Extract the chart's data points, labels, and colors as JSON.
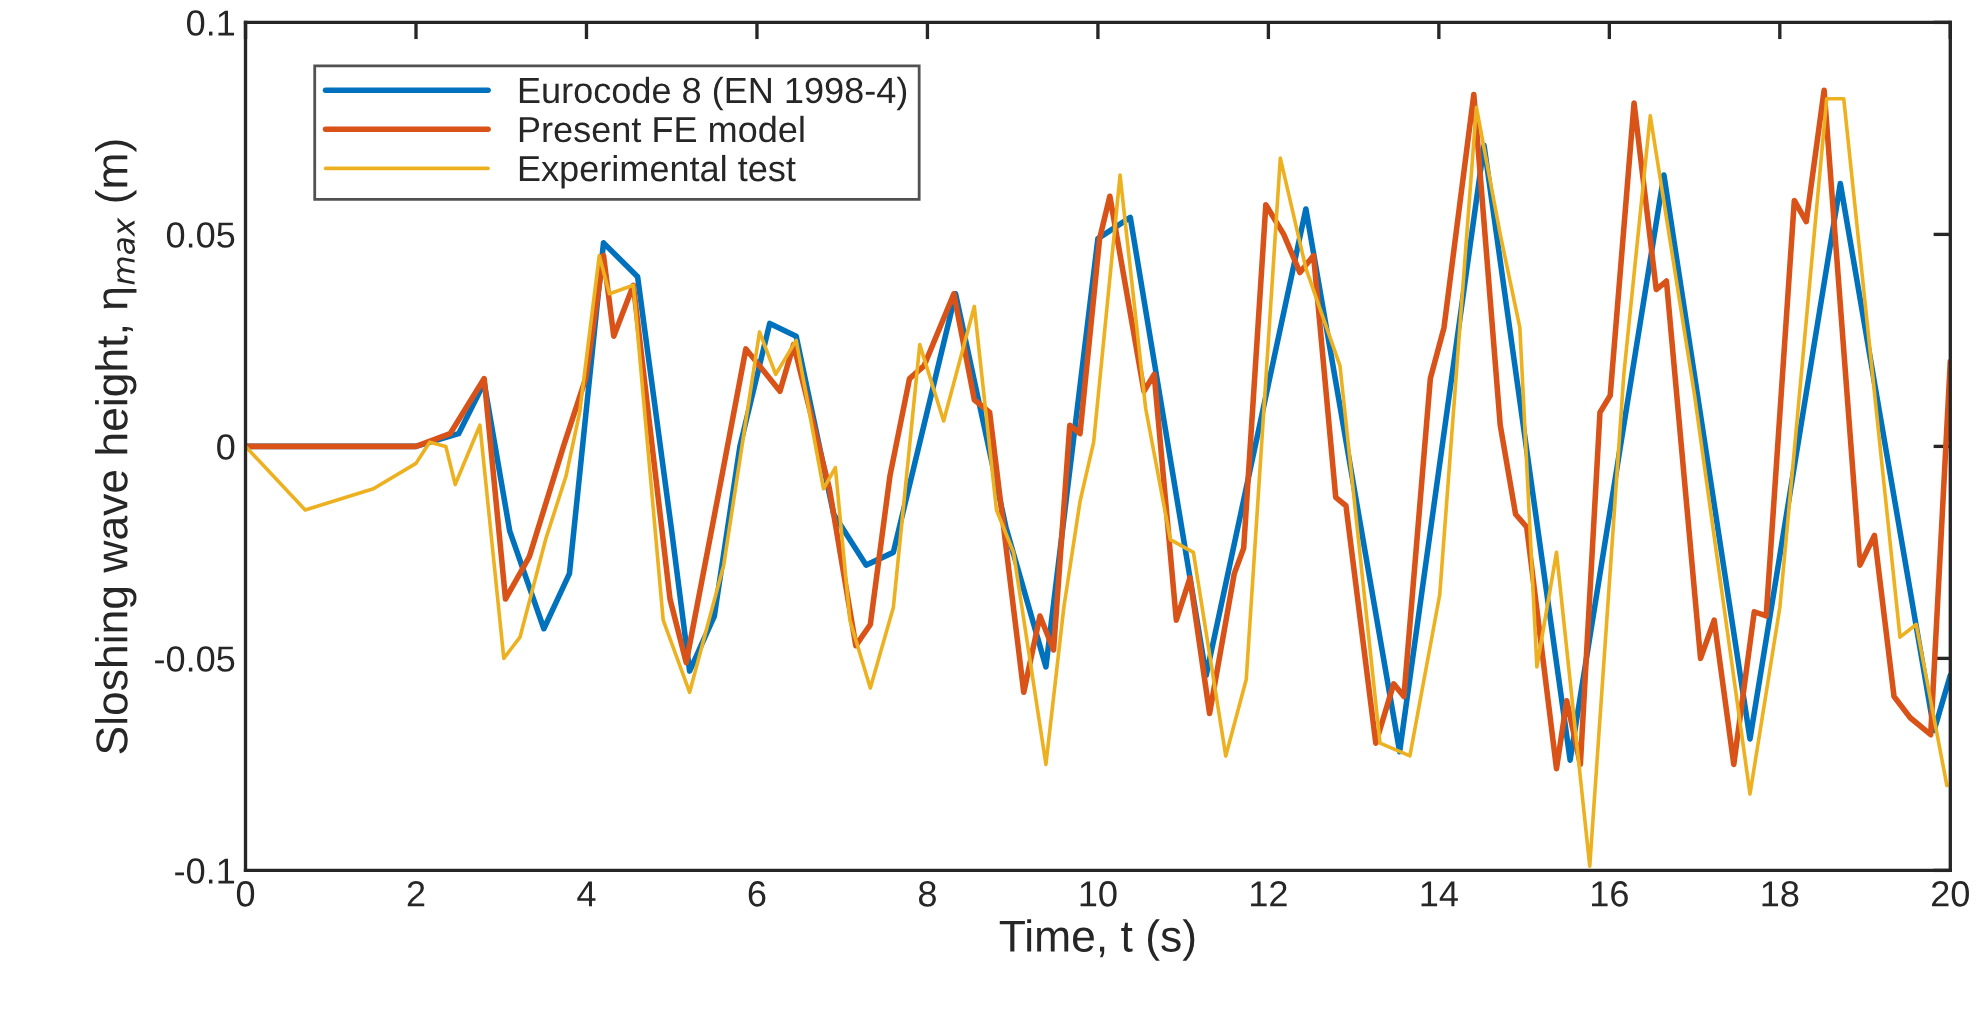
{
  "chart_data": {
    "type": "line",
    "xlabel": "Time, t (s)",
    "ylabel": "Sloshing wave height, η$_{max}$ (m)",
    "xlim": [
      0,
      20
    ],
    "xticks": [
      0,
      2,
      4,
      6,
      8,
      10,
      12,
      14,
      16,
      18,
      20
    ],
    "ylim": [
      -0.1,
      0.1
    ],
    "yticks": [
      {
        "value": -0.1,
        "label": "-0.1"
      },
      {
        "value": -0.05,
        "label": "-0.05"
      },
      0,
      0.05,
      0.1
    ],
    "grid": false,
    "legend": "top left",
    "marker": "none",
    "line_style": "solid",
    "series": [
      {
        "name": "Eurocode 8 (EN 1998-4)",
        "color": "#0072bd",
        "x": [
          0,
          2,
          2.5,
          2.8,
          3.1,
          3.5,
          3.8,
          4.2,
          4.6,
          5.0,
          5.21,
          5.5,
          5.8,
          6.15,
          6.46,
          6.9,
          7.28,
          7.6,
          8.33,
          8.92,
          9.39,
          10.0,
          10.38,
          11.27,
          12.44,
          13.54,
          14.53,
          15.54,
          16.64,
          17.65,
          18.71,
          19.81,
          20
        ],
        "values": [
          0,
          0,
          0.003,
          0.015,
          -0.02,
          -0.043,
          -0.03,
          0.048,
          0.04,
          -0.02,
          -0.053,
          -0.04,
          0.0,
          0.029,
          0.026,
          -0.016,
          -0.028,
          -0.025,
          0.036,
          -0.019,
          -0.052,
          0.049,
          0.054,
          -0.054,
          0.056,
          -0.072,
          0.071,
          -0.074,
          0.064,
          -0.069,
          0.062,
          -0.067,
          -0.054
        ]
      },
      {
        "name": "Present FE model",
        "color": "#d95319",
        "x": [
          0,
          2,
          2.4,
          2.8,
          3.05,
          3.33,
          3.73,
          3.99,
          4.2,
          4.32,
          4.55,
          4.98,
          5.17,
          5.56,
          5.87,
          6.27,
          6.43,
          6.85,
          7.16,
          7.33,
          7.56,
          7.79,
          7.96,
          8.31,
          8.55,
          8.73,
          9.13,
          9.32,
          9.48,
          9.67,
          9.79,
          10.02,
          10.14,
          10.54,
          10.66,
          10.92,
          11.08,
          11.31,
          11.6,
          11.71,
          11.97,
          12.18,
          12.37,
          12.53,
          12.79,
          12.91,
          13.26,
          13.47,
          13.59,
          13.9,
          14.06,
          14.41,
          14.72,
          14.9,
          15.03,
          15.38,
          15.5,
          15.66,
          15.89,
          16.01,
          16.29,
          16.55,
          16.67,
          17.07,
          17.23,
          17.46,
          17.7,
          17.84,
          18.17,
          18.31,
          18.52,
          18.94,
          19.11,
          19.34,
          19.53,
          19.77,
          20
        ],
        "values": [
          0,
          0,
          0.003,
          0.016,
          -0.036,
          -0.026,
          0,
          0.016,
          0.045,
          0.026,
          0.038,
          -0.036,
          -0.051,
          -0.01,
          0.023,
          0.013,
          0.024,
          -0.01,
          -0.047,
          -0.042,
          -0.007,
          0.016,
          0.019,
          0.036,
          0.011,
          0.008,
          -0.058,
          -0.04,
          -0.048,
          0.005,
          0.003,
          0.049,
          0.059,
          0.013,
          0.017,
          -0.041,
          -0.031,
          -0.063,
          -0.03,
          -0.024,
          0.057,
          0.05,
          0.041,
          0.045,
          -0.012,
          -0.014,
          -0.07,
          -0.056,
          -0.059,
          0.016,
          0.028,
          0.083,
          0.005,
          -0.016,
          -0.019,
          -0.076,
          -0.06,
          -0.075,
          0.008,
          0.012,
          0.081,
          0.037,
          0.039,
          -0.05,
          -0.041,
          -0.075,
          -0.039,
          -0.04,
          0.058,
          0.053,
          0.084,
          -0.028,
          -0.021,
          -0.059,
          -0.064,
          -0.068,
          0.02
        ]
      },
      {
        "name": "Experimental test",
        "color": "#edb120",
        "x": [
          0,
          0.7,
          1.5,
          2.0,
          2.16,
          2.35,
          2.46,
          2.75,
          3.03,
          3.22,
          3.52,
          3.76,
          3.92,
          4.15,
          4.27,
          4.55,
          4.9,
          5.21,
          5.61,
          6.03,
          6.22,
          6.46,
          6.78,
          6.92,
          7.09,
          7.33,
          7.6,
          7.91,
          8.19,
          8.55,
          8.81,
          9.01,
          9.39,
          9.6,
          9.79,
          9.95,
          10.26,
          10.56,
          10.85,
          11.12,
          11.5,
          11.74,
          12.14,
          12.44,
          12.84,
          13.31,
          13.66,
          14.01,
          14.44,
          14.72,
          14.95,
          15.15,
          15.38,
          15.77,
          16.17,
          16.48,
          17.0,
          17.65,
          18.0,
          18.55,
          18.75,
          19.41,
          19.6,
          19.96
        ],
        "values": [
          0,
          -0.015,
          -0.01,
          -0.004,
          0.001,
          0,
          -0.009,
          0.005,
          -0.05,
          -0.045,
          -0.022,
          -0.007,
          0.008,
          0.045,
          0.036,
          0.038,
          -0.041,
          -0.058,
          -0.028,
          0.027,
          0.017,
          0.025,
          -0.01,
          -0.005,
          -0.041,
          -0.057,
          -0.038,
          0.024,
          0.006,
          0.033,
          -0.015,
          -0.025,
          -0.075,
          -0.038,
          -0.013,
          0.001,
          0.064,
          0.009,
          -0.022,
          -0.025,
          -0.073,
          -0.055,
          0.068,
          0.042,
          0.019,
          -0.07,
          -0.073,
          -0.035,
          0.08,
          0.05,
          0.028,
          -0.052,
          -0.025,
          -0.099,
          0.017,
          0.078,
          0.012,
          -0.082,
          -0.038,
          0.082,
          0.082,
          -0.045,
          -0.042,
          -0.08
        ]
      }
    ]
  }
}
